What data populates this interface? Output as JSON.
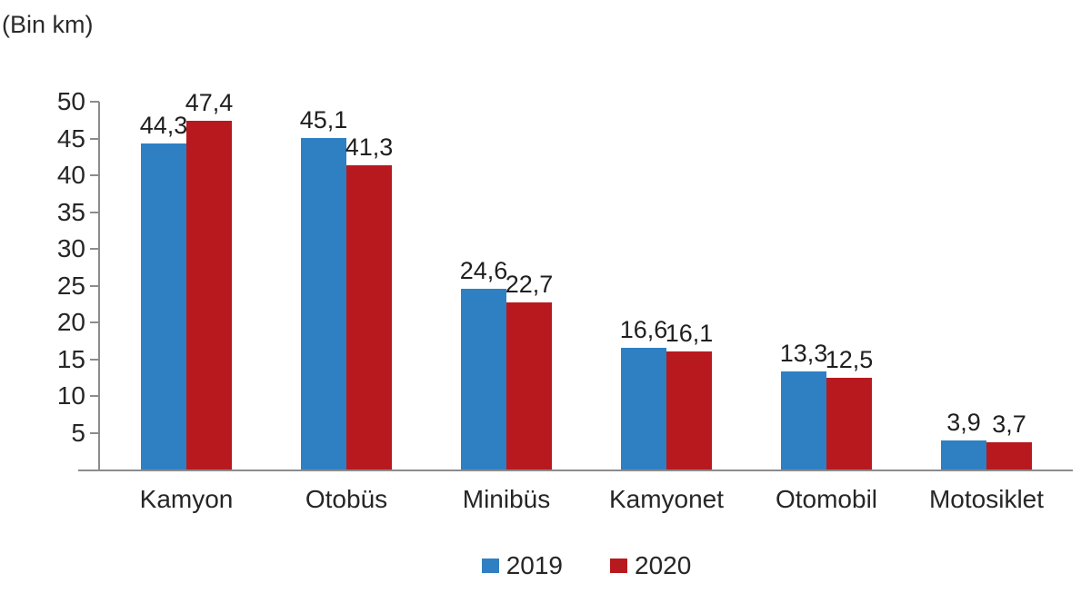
{
  "chart_data": {
    "type": "bar",
    "title": "",
    "unit_label": "(Bin km)",
    "xlabel": "",
    "ylabel": "(Bin km)",
    "categories": [
      "Kamyon",
      "Otobüs",
      "Minibüs",
      "Kamyonet",
      "Otomobil",
      "Motosiklet"
    ],
    "series": [
      {
        "name": "2019",
        "color": "#2E80C3",
        "values": [
          44.3,
          45.1,
          24.6,
          16.6,
          13.3,
          3.9
        ],
        "labels": [
          "44,3",
          "45,1",
          "24,6",
          "16,6",
          "13,3",
          "3,9"
        ]
      },
      {
        "name": "2020",
        "color": "#B8191E",
        "values": [
          47.4,
          41.3,
          22.7,
          16.1,
          12.5,
          3.7
        ],
        "labels": [
          "47,4",
          "41,3",
          "22,7",
          "16,1",
          "12,5",
          "3,7"
        ]
      }
    ],
    "ylim": [
      0,
      50
    ],
    "yticks": [
      50,
      45,
      40,
      35,
      30,
      25,
      20,
      15,
      10,
      5
    ],
    "grid": false,
    "legend_position": "bottom",
    "decimal_separator": ","
  },
  "colors": {
    "series_2019": "#2E80C3",
    "series_2020": "#B8191E",
    "axis_line": "#8c8c8c",
    "text": "#262626",
    "background": "#ffffff"
  }
}
